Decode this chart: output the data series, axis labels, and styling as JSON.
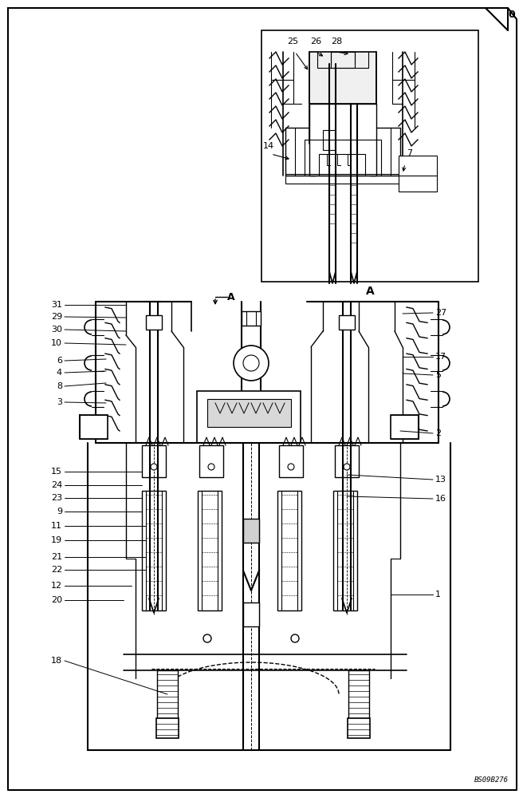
{
  "bg_color": "#ffffff",
  "lc": "#000000",
  "fig_w": 6.56,
  "fig_h": 10.0,
  "dpi": 100,
  "watermark": "BS09B276",
  "labels_left": [
    [
      "31",
      78,
      382
    ],
    [
      "29",
      78,
      397
    ],
    [
      "30",
      78,
      413
    ],
    [
      "10",
      78,
      430
    ],
    [
      "6",
      78,
      452
    ],
    [
      "4",
      78,
      467
    ],
    [
      "8",
      78,
      484
    ],
    [
      "3",
      78,
      504
    ],
    [
      "15",
      78,
      591
    ],
    [
      "24",
      78,
      608
    ],
    [
      "23",
      78,
      624
    ],
    [
      "9",
      78,
      641
    ],
    [
      "11",
      78,
      659
    ],
    [
      "19",
      78,
      677
    ],
    [
      "21",
      78,
      698
    ],
    [
      "22",
      78,
      714
    ],
    [
      "12",
      78,
      734
    ],
    [
      "20",
      78,
      752
    ],
    [
      "18",
      78,
      828
    ]
  ],
  "labels_right": [
    [
      "27",
      546,
      392
    ],
    [
      "17",
      546,
      447
    ],
    [
      "5",
      546,
      470
    ],
    [
      "2",
      546,
      543
    ],
    [
      "13",
      546,
      601
    ],
    [
      "16",
      546,
      625
    ],
    [
      "1",
      546,
      745
    ]
  ],
  "labels_detail": [
    [
      "25",
      367,
      57
    ],
    [
      "26",
      394,
      57
    ],
    [
      "28",
      420,
      57
    ],
    [
      "14",
      337,
      188
    ],
    [
      "7",
      508,
      197
    ]
  ]
}
